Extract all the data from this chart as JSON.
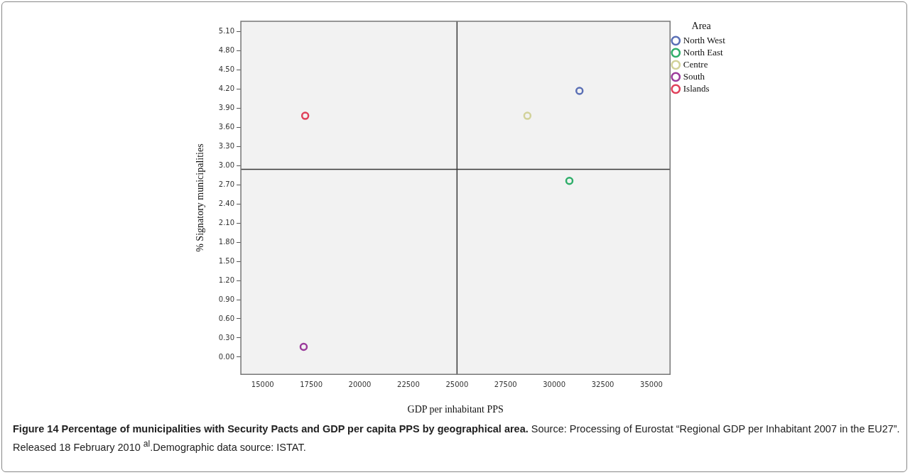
{
  "chart_data": {
    "type": "scatter",
    "title": "Figure 14 Percentage of municipalities with Security Pacts and GDP per capita PPS by geographical area.",
    "annotations": [
      "Source: Processing of Eurostat “Regional GDP per Inhabitant 2007 in the EU27”. Released 18 February 2010 $^{al}$.Demographic data source: ISTAT."
    ],
    "xlabel": "GDP per inhabitant PPS",
    "ylabel": "% Signatory municipalities",
    "legend_title": "Area",
    "legend": "top right",
    "marker": "circle",
    "grid": false,
    "xlim": [
      13880,
      35960
    ],
    "ylim": [
      -0.27,
      5.26
    ],
    "xticks": [
      15000,
      17500,
      20000,
      22500,
      25000,
      27500,
      30000,
      32500,
      35000
    ],
    "yticks": [
      {
        "value": 0,
        "label": "0.00"
      },
      {
        "value": 0.3,
        "label": "0.30"
      },
      {
        "value": 0.6,
        "label": "0.60"
      },
      {
        "value": 0.9,
        "label": "0.90"
      },
      {
        "value": 1.2,
        "label": "1.20"
      },
      {
        "value": 1.5,
        "label": "1.50"
      },
      {
        "value": 1.8,
        "label": "1.80"
      },
      {
        "value": 2.1,
        "label": "2.10"
      },
      {
        "value": 2.4,
        "label": "2.40"
      },
      {
        "value": 2.7,
        "label": "2.70"
      },
      {
        "value": 3.0,
        "label": "3.00"
      },
      {
        "value": 3.3,
        "label": "3.30"
      },
      {
        "value": 3.6,
        "label": "3.60"
      },
      {
        "value": 3.9,
        "label": "3.90"
      },
      {
        "value": 4.2,
        "label": "4.20"
      },
      {
        "value": 4.5,
        "label": "4.50"
      },
      {
        "value": 4.8,
        "label": "4.80"
      },
      {
        "value": 5.1,
        "label": "5.10"
      }
    ],
    "ref_lines": [
      {
        "axis": "x",
        "value": 25000,
        "color": "#3a3a3a"
      },
      {
        "axis": "y",
        "value": 2.94,
        "color": "#3a3a3a"
      }
    ],
    "series": [
      {
        "name": "North West",
        "color": "#5a6fb5",
        "x": [
          31300
        ],
        "values": [
          4.17
        ]
      },
      {
        "name": "North East",
        "color": "#2fae6a",
        "x": [
          30780
        ],
        "values": [
          2.76
        ]
      },
      {
        "name": "Centre",
        "color": "#d2d29a",
        "x": [
          28620
        ],
        "values": [
          3.78
        ]
      },
      {
        "name": "South",
        "color": "#9b3b9b",
        "x": [
          17110
        ],
        "values": [
          0.16
        ]
      },
      {
        "name": "Islands",
        "color": "#e0405a",
        "x": [
          17190
        ],
        "values": [
          3.78
        ]
      }
    ]
  }
}
